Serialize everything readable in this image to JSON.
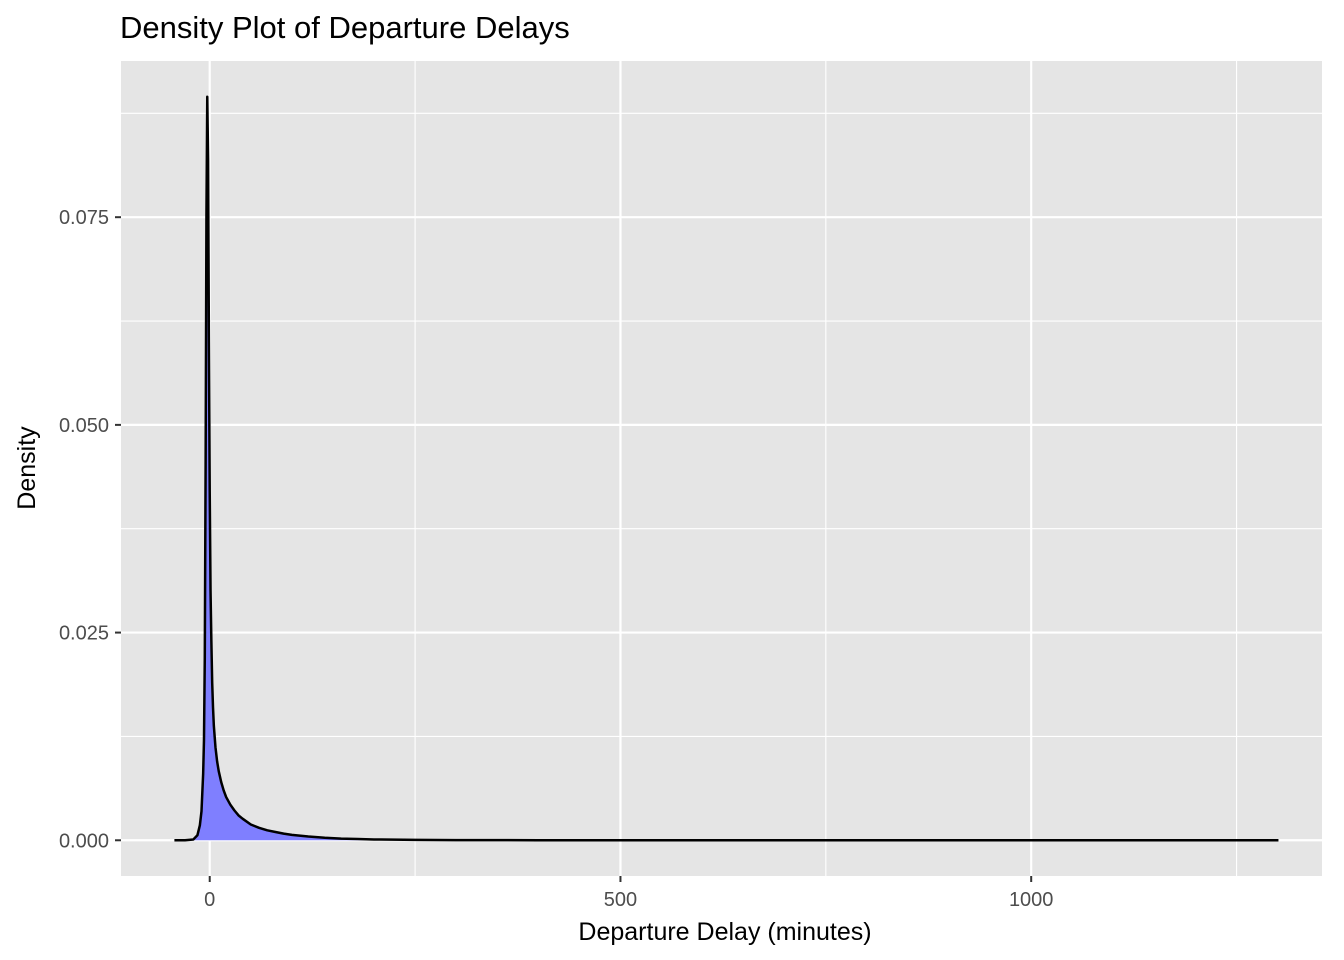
{
  "chart_data": {
    "type": "area",
    "title": "Density Plot of Departure Delays",
    "xlabel": "Departure Delay (minutes)",
    "ylabel": "Density",
    "xlim": [
      -108,
      1354
    ],
    "ylim": [
      -0.0043,
      0.0938
    ],
    "x_ticks": [
      0,
      500,
      1000
    ],
    "x_tick_labels": [
      "0",
      "500",
      "1000"
    ],
    "x_minor_ticks": [
      250,
      750,
      1250
    ],
    "y_ticks": [
      0.0,
      0.025,
      0.05,
      0.075
    ],
    "y_tick_labels": [
      "0.000",
      "0.025",
      "0.050",
      "0.075"
    ],
    "y_minor_ticks": [
      0.0125,
      0.0375,
      0.0625,
      0.0875
    ],
    "grid": true,
    "background": "#e5e5e5",
    "grid_color": "#ffffff",
    "fill_color": "#7f7fff",
    "line_color": "#000000",
    "series": [
      {
        "x": [
          -43,
          -30,
          -20,
          -15,
          -12,
          -10,
          -8,
          -7,
          -6,
          -5,
          -4,
          -3,
          -2,
          -1,
          0,
          1,
          2,
          3,
          4,
          5,
          7,
          9,
          11,
          14,
          17,
          20,
          25,
          30,
          35,
          40,
          50,
          60,
          70,
          80,
          90,
          100,
          120,
          140,
          160,
          180,
          200,
          250,
          300,
          400,
          500,
          700,
          1000,
          1301
        ],
        "y": [
          0.0,
          0.0,
          0.0001,
          0.0006,
          0.0018,
          0.0035,
          0.008,
          0.012,
          0.022,
          0.045,
          0.075,
          0.0895,
          0.082,
          0.06,
          0.042,
          0.03,
          0.024,
          0.019,
          0.016,
          0.0138,
          0.0112,
          0.0095,
          0.0083,
          0.007,
          0.006,
          0.0052,
          0.0043,
          0.0036,
          0.003,
          0.0026,
          0.0019,
          0.0015,
          0.0012,
          0.001,
          0.0008,
          0.00065,
          0.00045,
          0.0003,
          0.0002,
          0.00015,
          0.0001,
          5e-05,
          2e-05,
          1e-05,
          5e-06,
          0.0,
          0.0,
          0.0
        ]
      }
    ]
  }
}
